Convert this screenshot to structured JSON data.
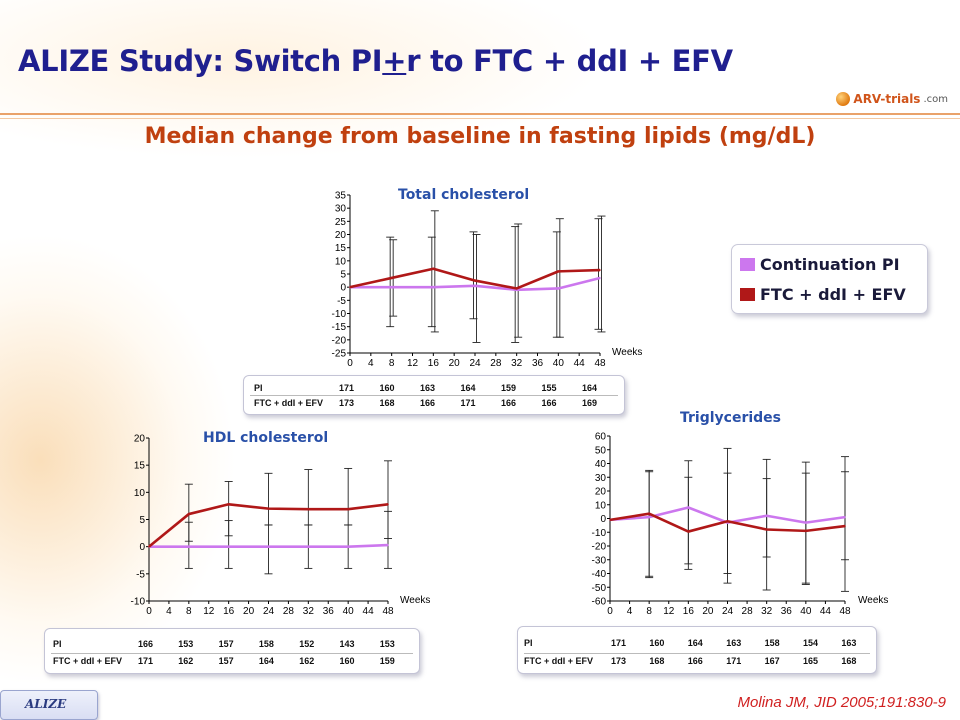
{
  "slide": {
    "title_pre": "ALIZE Study: Switch PI",
    "title_u": "+",
    "title_post": "r to FTC + ddI + EFV",
    "logo_text": "ARV-trials",
    "logo_suffix": ".com",
    "subtitle": "Median change from baseline in fasting lipids (mg/dL)",
    "footer_tab": "ALIZE",
    "citation": "Molina JM, JID 2005;191:830-9"
  },
  "legend": {
    "items": [
      {
        "label": "Continuation PI",
        "color": "#cc77ee"
      },
      {
        "label": "FTC + ddI + EFV",
        "color": "#b01818"
      }
    ]
  },
  "colors": {
    "pi": "#cc77ee",
    "ftc": "#b01818",
    "title_blue": "#1f1f8f",
    "subtitle_red": "#c0400f"
  },
  "chart_data": [
    {
      "type": "line",
      "title": "Total cholesterol",
      "xlabel": "Weeks",
      "xticks": [
        0,
        4,
        8,
        12,
        16,
        20,
        24,
        28,
        32,
        36,
        40,
        44,
        48
      ],
      "yticks": [
        35,
        30,
        25,
        20,
        15,
        10,
        5,
        0,
        -5,
        -10,
        -15,
        -20,
        -25
      ],
      "xlim": [
        0,
        48
      ],
      "ylim": [
        -25,
        35
      ],
      "series": [
        {
          "name": "Continuation PI",
          "x": [
            0,
            8,
            16,
            24,
            32,
            40,
            48
          ],
          "values": [
            0,
            0,
            0,
            0.5,
            -1,
            -0.5,
            3.5
          ],
          "err_low": [
            0,
            -15,
            -15,
            -12,
            -21,
            -19,
            -16
          ],
          "err_high": [
            0,
            19,
            19,
            21,
            23,
            21,
            26
          ]
        },
        {
          "name": "FTC + ddI + EFV",
          "x": [
            0,
            8,
            16,
            24,
            32,
            40,
            48
          ],
          "values": [
            0,
            3.5,
            7,
            2.5,
            -0.5,
            6,
            6.5
          ],
          "err_low": [
            0,
            -11,
            -17,
            -21,
            -19,
            -19,
            -17
          ],
          "err_high": [
            0,
            18,
            29,
            20,
            24,
            26,
            27
          ]
        }
      ],
      "n_table": {
        "rows": [
          {
            "label": "PI",
            "values": [
              "171",
              "160",
              "163",
              "164",
              "159",
              "155",
              "164"
            ]
          },
          {
            "label": "FTC + ddI + EFV",
            "values": [
              "173",
              "168",
              "166",
              "171",
              "166",
              "166",
              "169"
            ]
          }
        ]
      }
    },
    {
      "type": "line",
      "title": "HDL cholesterol",
      "xlabel": "Weeks",
      "xticks": [
        0,
        4,
        8,
        12,
        16,
        20,
        24,
        28,
        32,
        36,
        40,
        44,
        48
      ],
      "yticks": [
        20,
        15,
        10,
        5,
        0,
        -5,
        -10
      ],
      "xlim": [
        0,
        48
      ],
      "ylim": [
        -10,
        20
      ],
      "series": [
        {
          "name": "Continuation PI",
          "x": [
            0,
            8,
            16,
            24,
            32,
            40,
            48
          ],
          "values": [
            0,
            0,
            0,
            0,
            0,
            0,
            0.3
          ],
          "err_low": [
            0,
            -4,
            -4,
            -5,
            -4,
            -4,
            -4
          ],
          "err_high": [
            0,
            4.5,
            4.8,
            4,
            4,
            4,
            6.5
          ]
        },
        {
          "name": "FTC + ddI + EFV",
          "x": [
            0,
            8,
            16,
            24,
            32,
            40,
            48
          ],
          "values": [
            0,
            6,
            7.8,
            7,
            6.9,
            6.9,
            7.8
          ],
          "err_low": [
            0,
            1,
            2,
            4,
            4,
            4,
            1.5
          ],
          "err_high": [
            0,
            11.5,
            12,
            13.5,
            14.2,
            14.4,
            15.8
          ]
        }
      ],
      "n_table": {
        "rows": [
          {
            "label": "PI",
            "values": [
              "166",
              "153",
              "157",
              "158",
              "152",
              "143",
              "153"
            ]
          },
          {
            "label": "FTC + ddI + EFV",
            "values": [
              "171",
              "162",
              "157",
              "164",
              "162",
              "160",
              "159"
            ]
          }
        ]
      }
    },
    {
      "type": "line",
      "title": "Triglycerides",
      "xlabel": "Weeks",
      "xticks": [
        0,
        4,
        8,
        12,
        16,
        20,
        24,
        28,
        32,
        36,
        40,
        44,
        48
      ],
      "yticks": [
        60,
        50,
        40,
        30,
        20,
        10,
        0,
        -10,
        -20,
        -30,
        -40,
        -50,
        -60
      ],
      "xlim": [
        0,
        48
      ],
      "ylim": [
        -60,
        60
      ],
      "series": [
        {
          "name": "Continuation PI",
          "x": [
            0,
            8,
            16,
            24,
            32,
            40,
            48
          ],
          "values": [
            -1,
            1,
            8,
            -3,
            2,
            -3,
            1
          ],
          "err_low": [
            -1,
            -43,
            -33,
            -40,
            -28,
            -47,
            -30
          ],
          "err_high": [
            -1,
            34,
            30,
            33,
            29,
            33,
            34
          ]
        },
        {
          "name": "FTC + ddI + EFV",
          "x": [
            0,
            8,
            16,
            24,
            32,
            40,
            48
          ],
          "values": [
            -1,
            3.5,
            -9.5,
            -2,
            -8,
            -9,
            -5.5
          ],
          "err_low": [
            -1,
            -42,
            -37,
            -47,
            -52,
            -48,
            -53
          ],
          "err_high": [
            -1,
            35,
            42,
            51,
            43,
            41,
            45
          ]
        }
      ],
      "n_table": {
        "rows": [
          {
            "label": "PI",
            "values": [
              "171",
              "160",
              "164",
              "163",
              "158",
              "154",
              "163"
            ]
          },
          {
            "label": "FTC + ddI + EFV",
            "values": [
              "173",
              "168",
              "166",
              "171",
              "167",
              "165",
              "168"
            ]
          }
        ]
      }
    }
  ]
}
